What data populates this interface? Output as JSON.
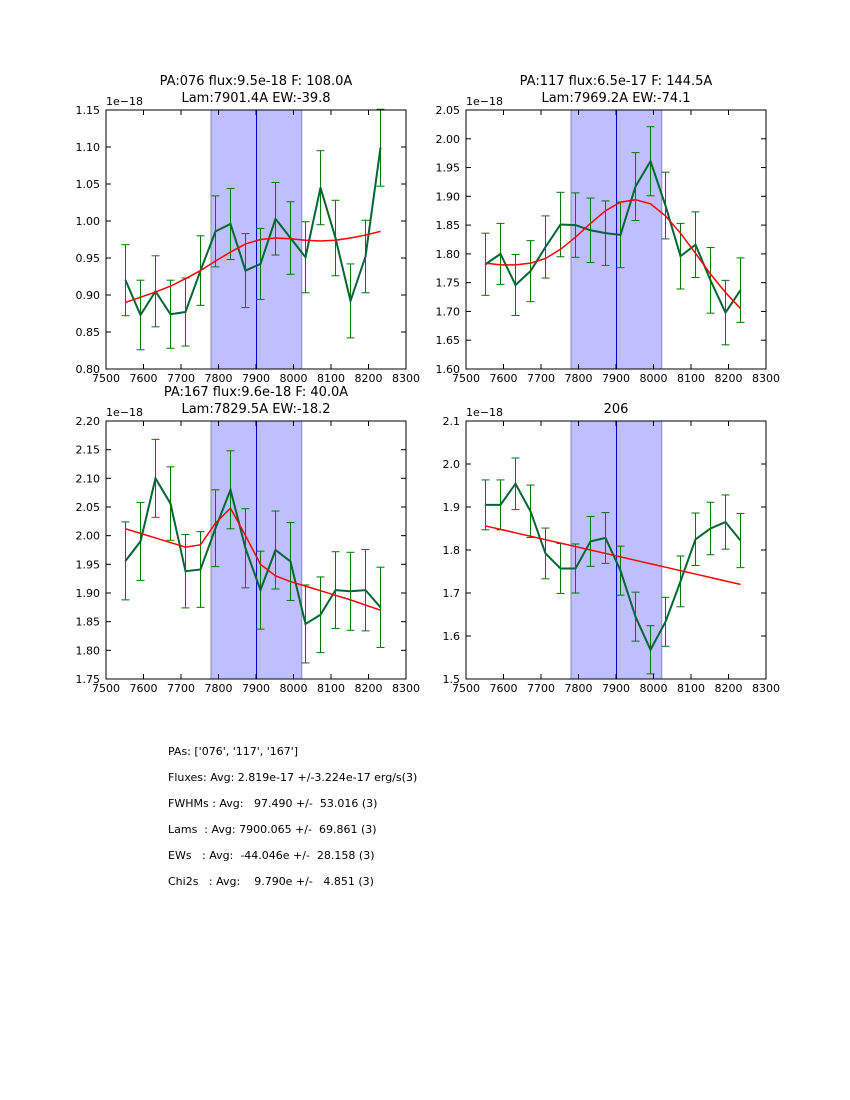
{
  "chart_data": [
    {
      "type": "line",
      "title": [
        "PA:076 flux:9.5e-18 F: 108.0A",
        "Lam:7901.4A EW:-39.8"
      ],
      "offset_label": "1e−18",
      "xlim": [
        7500,
        8300
      ],
      "ylim": [
        0.8,
        1.15
      ],
      "xticks": [
        7500,
        7600,
        7700,
        7800,
        7900,
        8000,
        8100,
        8200,
        8300
      ],
      "yticks": [
        0.8,
        0.85,
        0.9,
        0.95,
        1.0,
        1.05,
        1.1,
        1.15
      ],
      "ytick_decimals": 2,
      "band": [
        7780,
        8022
      ],
      "center_line": 7901.4,
      "x": [
        7552,
        7592,
        7632,
        7672,
        7712,
        7752,
        7792,
        7832,
        7872,
        7912,
        7952,
        7992,
        8032,
        8072,
        8112,
        8152,
        8192,
        8232
      ],
      "series": [
        {
          "name": "data",
          "color": "#006633",
          "values": [
            0.92,
            0.873,
            0.905,
            0.874,
            0.877,
            0.933,
            0.986,
            0.996,
            0.933,
            0.942,
            1.003,
            0.977,
            0.951,
            1.045,
            0.977,
            0.892,
            0.952,
            1.099
          ],
          "errors": [
            0.048,
            0.047,
            0.048,
            0.046,
            0.046,
            0.047,
            0.048,
            0.048,
            0.05,
            0.048,
            0.049,
            0.049,
            0.048,
            0.05,
            0.051,
            0.05,
            0.049,
            0.052
          ]
        },
        {
          "name": "fit",
          "color": "#ff0000",
          "values": [
            0.89,
            0.897,
            0.904,
            0.912,
            0.922,
            0.933,
            0.946,
            0.958,
            0.969,
            0.975,
            0.977,
            0.976,
            0.974,
            0.973,
            0.974,
            0.977,
            0.981,
            0.986
          ]
        }
      ]
    },
    {
      "type": "line",
      "title": [
        "PA:117 flux:6.5e-17 F: 144.5A",
        "Lam:7969.2A EW:-74.1"
      ],
      "offset_label": "1e−18",
      "xlim": [
        7500,
        8300
      ],
      "ylim": [
        1.6,
        2.05
      ],
      "xticks": [
        7500,
        7600,
        7700,
        7800,
        7900,
        8000,
        8100,
        8200,
        8300
      ],
      "yticks": [
        1.6,
        1.65,
        1.7,
        1.75,
        1.8,
        1.85,
        1.9,
        1.95,
        2.0,
        2.05
      ],
      "ytick_decimals": 2,
      "band": [
        7780,
        8022
      ],
      "center_line": 7901.4,
      "x": [
        7552,
        7592,
        7632,
        7672,
        7712,
        7752,
        7792,
        7832,
        7872,
        7912,
        7952,
        7992,
        8032,
        8072,
        8112,
        8152,
        8192,
        8232
      ],
      "series": [
        {
          "name": "data",
          "color": "#006633",
          "values": [
            1.782,
            1.8,
            1.746,
            1.77,
            1.812,
            1.851,
            1.85,
            1.841,
            1.836,
            1.833,
            1.917,
            1.961,
            1.884,
            1.796,
            1.816,
            1.754,
            1.698,
            1.737
          ],
          "errors": [
            0.054,
            0.053,
            0.053,
            0.053,
            0.054,
            0.056,
            0.056,
            0.056,
            0.056,
            0.057,
            0.059,
            0.06,
            0.058,
            0.057,
            0.057,
            0.057,
            0.056,
            0.056
          ]
        },
        {
          "name": "fit",
          "color": "#ff0000",
          "values": [
            1.784,
            1.781,
            1.781,
            1.784,
            1.792,
            1.808,
            1.829,
            1.853,
            1.875,
            1.89,
            1.894,
            1.887,
            1.866,
            1.836,
            1.801,
            1.765,
            1.733,
            1.705
          ]
        }
      ]
    },
    {
      "type": "line",
      "title": [
        "PA:167 flux:9.6e-18 F: 40.0A",
        "Lam:7829.5A EW:-18.2"
      ],
      "offset_label": "1e−18",
      "xlim": [
        7500,
        8300
      ],
      "ylim": [
        1.75,
        2.2
      ],
      "xticks": [
        7500,
        7600,
        7700,
        7800,
        7900,
        8000,
        8100,
        8200,
        8300
      ],
      "yticks": [
        1.75,
        1.8,
        1.85,
        1.9,
        1.95,
        2.0,
        2.05,
        2.1,
        2.15,
        2.2
      ],
      "ytick_decimals": 2,
      "band": [
        7780,
        8022
      ],
      "center_line": 7901.4,
      "x": [
        7552,
        7592,
        7632,
        7672,
        7712,
        7752,
        7792,
        7832,
        7872,
        7912,
        7952,
        7992,
        8032,
        8072,
        8112,
        8152,
        8192,
        8232
      ],
      "series": [
        {
          "name": "data",
          "color": "#006633",
          "values": [
            1.956,
            1.99,
            2.1,
            2.056,
            1.938,
            1.941,
            2.013,
            2.08,
            1.978,
            1.905,
            1.975,
            1.955,
            1.846,
            1.862,
            1.905,
            1.903,
            1.905,
            1.875
          ],
          "errors": [
            0.068,
            0.068,
            0.068,
            0.064,
            0.064,
            0.066,
            0.067,
            0.068,
            0.069,
            0.068,
            0.068,
            0.068,
            0.068,
            0.066,
            0.067,
            0.068,
            0.071,
            0.07
          ]
        },
        {
          "name": "fit",
          "color": "#ff0000",
          "values": [
            2.012,
            2.004,
            1.996,
            1.988,
            1.98,
            1.984,
            2.022,
            2.048,
            2.0,
            1.95,
            1.93,
            1.92,
            1.912,
            1.904,
            1.896,
            1.888,
            1.879,
            1.87
          ]
        }
      ]
    },
    {
      "type": "line",
      "title": [
        "206"
      ],
      "offset_label": "1e−18",
      "xlim": [
        7500,
        8300
      ],
      "ylim": [
        1.5,
        2.1
      ],
      "xticks": [
        7500,
        7600,
        7700,
        7800,
        7900,
        8000,
        8100,
        8200,
        8300
      ],
      "yticks": [
        1.5,
        1.6,
        1.7,
        1.8,
        1.9,
        2.0,
        2.1
      ],
      "ytick_decimals": 1,
      "band": [
        7780,
        8022
      ],
      "center_line": 7901.4,
      "x": [
        7552,
        7592,
        7632,
        7672,
        7712,
        7752,
        7792,
        7832,
        7872,
        7912,
        7952,
        7992,
        8032,
        8072,
        8112,
        8152,
        8192,
        8232
      ],
      "series": [
        {
          "name": "data",
          "color": "#006633",
          "values": [
            1.905,
            1.905,
            1.954,
            1.89,
            1.792,
            1.757,
            1.757,
            1.82,
            1.828,
            1.752,
            1.645,
            1.568,
            1.633,
            1.727,
            1.825,
            1.85,
            1.865,
            1.822
          ],
          "errors": [
            0.058,
            0.058,
            0.06,
            0.061,
            0.059,
            0.058,
            0.057,
            0.058,
            0.059,
            0.057,
            0.057,
            0.056,
            0.057,
            0.059,
            0.061,
            0.061,
            0.063,
            0.063
          ]
        },
        {
          "name": "fit",
          "color": "#ff0000",
          "values": [
            1.856,
            1.848,
            1.84,
            1.832,
            1.824,
            1.816,
            1.808,
            1.8,
            1.792,
            1.784,
            1.776,
            1.768,
            1.76,
            1.752,
            1.744,
            1.736,
            1.728,
            1.72
          ]
        }
      ]
    }
  ],
  "colors": {
    "band_fill": "#bfbfff",
    "band_edge": "#8888bb",
    "center_line": "#0000cc"
  },
  "stats": [
    "PAs: ['076', '117', '167']",
    "Fluxes: Avg: 2.819e-17 +/-3.224e-17 erg/s(3)",
    "FWHMs : Avg:   97.490 +/-  53.016 (3)",
    "Lams  : Avg: 7900.065 +/-  69.861 (3)",
    "EWs   : Avg:  -44.046e +/-  28.158 (3)",
    "Chi2s   : Avg:    9.790e +/-   4.851 (3)"
  ]
}
